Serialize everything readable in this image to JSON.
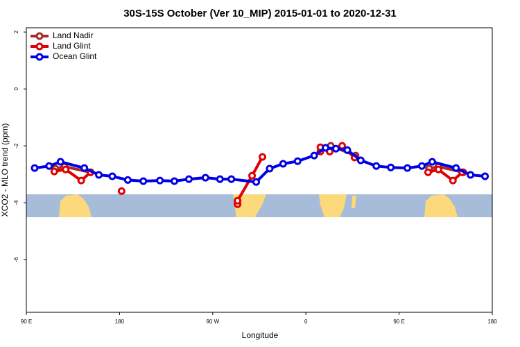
{
  "chart_data": {
    "type": "line",
    "title": "30S-15S October (Ver 10_MIP)   2015-01-01 to 2020-12-31",
    "xlabel": "Longitude",
    "ylabel": "XCO2 - MLO trend (ppm)",
    "xlim": [
      90,
      540
    ],
    "ylim": [
      -7.85,
      2.15
    ],
    "xticks": [
      {
        "value": 90,
        "label": "90 E"
      },
      180,
      {
        "value": 270,
        "label": "90 W"
      },
      {
        "value": 360,
        "label": "0"
      },
      {
        "value": 450,
        "label": "90 E"
      },
      {
        "value": 540,
        "label": "180"
      }
    ],
    "yticks": [
      -6,
      -4,
      -2,
      0,
      2
    ],
    "legend": "top-left",
    "series": [
      {
        "name": "Land Nadir",
        "color": "#a52a2a",
        "x": [
          118,
          127,
          152,
          null,
          384,
          408,
          null,
          479,
          488,
          512
        ],
        "values": [
          -2.8,
          -2.73,
          -2.93,
          null,
          -2.0,
          -2.34,
          null,
          -2.8,
          -2.73,
          -2.93
        ]
      },
      {
        "name": "Land Glint",
        "color": "#e00000",
        "x": [
          117,
          128,
          143,
          152,
          null,
          182,
          null,
          294,
          294,
          308,
          318,
          null,
          374,
          374,
          383,
          395,
          407,
          null,
          478,
          488,
          502,
          511
        ],
        "values": [
          -2.9,
          -2.83,
          -3.22,
          -2.93,
          null,
          -3.59,
          null,
          -4.05,
          -3.93,
          -3.05,
          -2.39,
          null,
          -2.2,
          -2.05,
          -2.2,
          -2.0,
          -2.41,
          null,
          -2.93,
          -2.83,
          -3.22,
          -2.93
        ]
      },
      {
        "name": "Ocean Glint",
        "color": "#0000e6",
        "x": [
          98,
          112,
          123,
          146,
          160,
          173,
          188,
          203,
          219,
          233,
          247,
          263,
          277,
          288,
          312,
          325,
          338,
          352,
          368,
          379,
          389,
          400,
          413,
          428,
          442,
          458,
          472,
          482,
          505,
          519,
          533
        ],
        "values": [
          -2.78,
          -2.71,
          -2.56,
          -2.78,
          -3.02,
          -3.07,
          -3.2,
          -3.24,
          -3.22,
          -3.24,
          -3.17,
          -3.12,
          -3.17,
          -3.17,
          -3.27,
          -2.8,
          -2.63,
          -2.54,
          -2.34,
          -2.07,
          -2.1,
          -2.15,
          -2.51,
          -2.71,
          -2.76,
          -2.78,
          -2.71,
          -2.56,
          -2.78,
          -3.02,
          -3.07
        ]
      }
    ]
  }
}
